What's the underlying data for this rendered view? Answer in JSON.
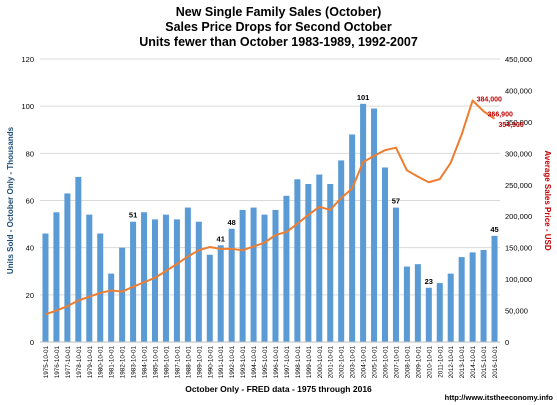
{
  "chart_data": {
    "type": "bar",
    "title": "New Single Family Sales (October)",
    "subtitle_1": "Sales Price Drops for Second October",
    "subtitle_2": "Units fewer than October 1983-1989, 1992-2007",
    "xlabel": "October Only - FRED data - 1975 through 2016",
    "ylabel": "Units Sold - October Only - Thousands",
    "y2label": "Average Sales Price - USD",
    "credit": "http://www.itstheeconomy.info",
    "ylim": [
      0,
      120
    ],
    "y2lim": [
      0,
      450000
    ],
    "yticks": [
      "0",
      "20",
      "40",
      "60",
      "80",
      "100",
      "120"
    ],
    "y2ticks": [
      "0",
      "50,000",
      "100,000",
      "150,000",
      "200,000",
      "250,000",
      "300,000",
      "350,000",
      "400,000",
      "450,000"
    ],
    "grid": true,
    "categories": [
      "1975-10-01",
      "1976-10-01",
      "1977-10-01",
      "1978-10-01",
      "1979-10-01",
      "1980-10-01",
      "1981-10-01",
      "1982-10-01",
      "1983-10-01",
      "1984-10-01",
      "1985-10-01",
      "1986-10-01",
      "1987-10-01",
      "1988-10-01",
      "1989-10-01",
      "1990-10-01",
      "1991-10-01",
      "1992-10-01",
      "1993-10-01",
      "1994-10-01",
      "1995-10-01",
      "1996-10-01",
      "1997-10-01",
      "1998-10-01",
      "1999-10-01",
      "2000-10-01",
      "2001-10-01",
      "2002-10-01",
      "2003-10-01",
      "2004-10-01",
      "2005-10-01",
      "2006-10-01",
      "2007-10-01",
      "2008-10-01",
      "2009-10-01",
      "2010-10-01",
      "2011-10-01",
      "2012-10-01",
      "2013-10-01",
      "2014-10-01",
      "2015-10-01",
      "2016-10-01"
    ],
    "series": [
      {
        "kind": "bar",
        "axis": "left",
        "color": "#5b9bd5",
        "values": [
          46,
          55,
          63,
          70,
          54,
          46,
          29,
          40,
          51,
          55,
          52,
          54,
          52,
          57,
          51,
          37,
          41,
          48,
          56,
          57,
          54,
          56,
          62,
          69,
          67,
          71,
          67,
          77,
          88,
          101,
          99,
          74,
          57,
          32,
          33,
          23,
          25,
          29,
          36,
          38,
          39,
          45
        ]
      },
      {
        "kind": "line",
        "axis": "right",
        "color": "#ed7d31",
        "values": [
          44000,
          50000,
          57000,
          66000,
          72000,
          78000,
          82000,
          80000,
          88000,
          95000,
          102000,
          113000,
          124000,
          136000,
          146000,
          151000,
          148000,
          148000,
          146000,
          152000,
          158000,
          170000,
          175000,
          188000,
          202000,
          215000,
          210000,
          229000,
          244000,
          286000,
          296000,
          305000,
          309000,
          273000,
          263000,
          254000,
          259000,
          285000,
          330000,
          384000,
          366900,
          354900
        ]
      }
    ],
    "bar_labels": [
      {
        "index": 8,
        "text": "51"
      },
      {
        "index": 16,
        "text": "41"
      },
      {
        "index": 17,
        "text": "48"
      },
      {
        "index": 29,
        "text": "101"
      },
      {
        "index": 32,
        "text": "57"
      },
      {
        "index": 35,
        "text": "23"
      },
      {
        "index": 41,
        "text": "45"
      }
    ],
    "price_labels": [
      {
        "index": 39,
        "text": "384,000"
      },
      {
        "index": 40,
        "text": "366,900"
      },
      {
        "index": 41,
        "text": "354,900"
      }
    ],
    "price_label_color": "#c00000"
  }
}
